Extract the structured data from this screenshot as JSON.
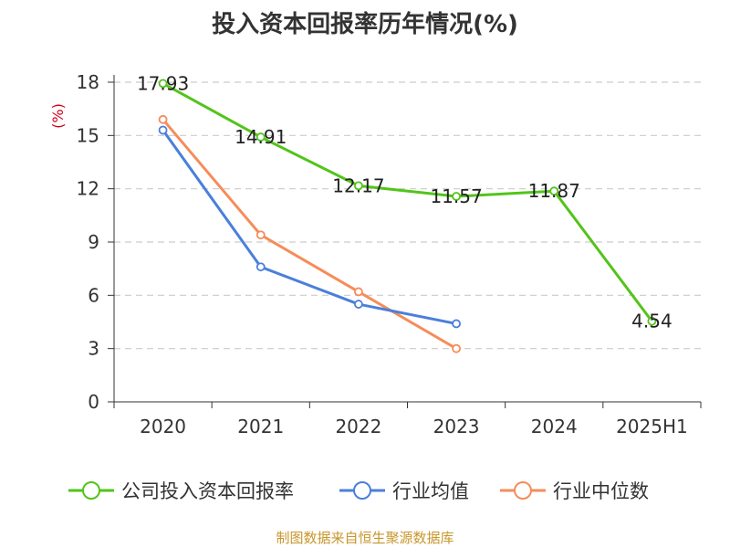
{
  "chart_data": {
    "type": "line",
    "title": "投入资本回报率历年情况(%)",
    "ylabel": "(%)",
    "xlabel": "",
    "categories": [
      "2020",
      "2021",
      "2022",
      "2023",
      "2024",
      "2025H1"
    ],
    "ylim": [
      0,
      18
    ],
    "yticks": [
      0,
      3,
      6,
      9,
      12,
      15,
      18
    ],
    "grid": true,
    "legend_position": "bottom",
    "series": [
      {
        "name": "公司投入资本回报率",
        "color": "#52c41a",
        "values": [
          17.93,
          14.91,
          12.17,
          11.57,
          11.87,
          4.54
        ],
        "data_labels": true
      },
      {
        "name": "行业均值",
        "color": "#4a7fdb",
        "values": [
          15.3,
          7.6,
          5.5,
          4.4,
          null,
          null
        ],
        "data_labels": false
      },
      {
        "name": "行业中位数",
        "color": "#f68c5a",
        "values": [
          15.9,
          9.4,
          6.2,
          3.0,
          null,
          null
        ],
        "data_labels": false
      }
    ]
  },
  "source_note": "制图数据来自恒生聚源数据库",
  "colors": {
    "ylabel": "#d0021b",
    "axis": "#333333",
    "grid": "#cccccc"
  }
}
